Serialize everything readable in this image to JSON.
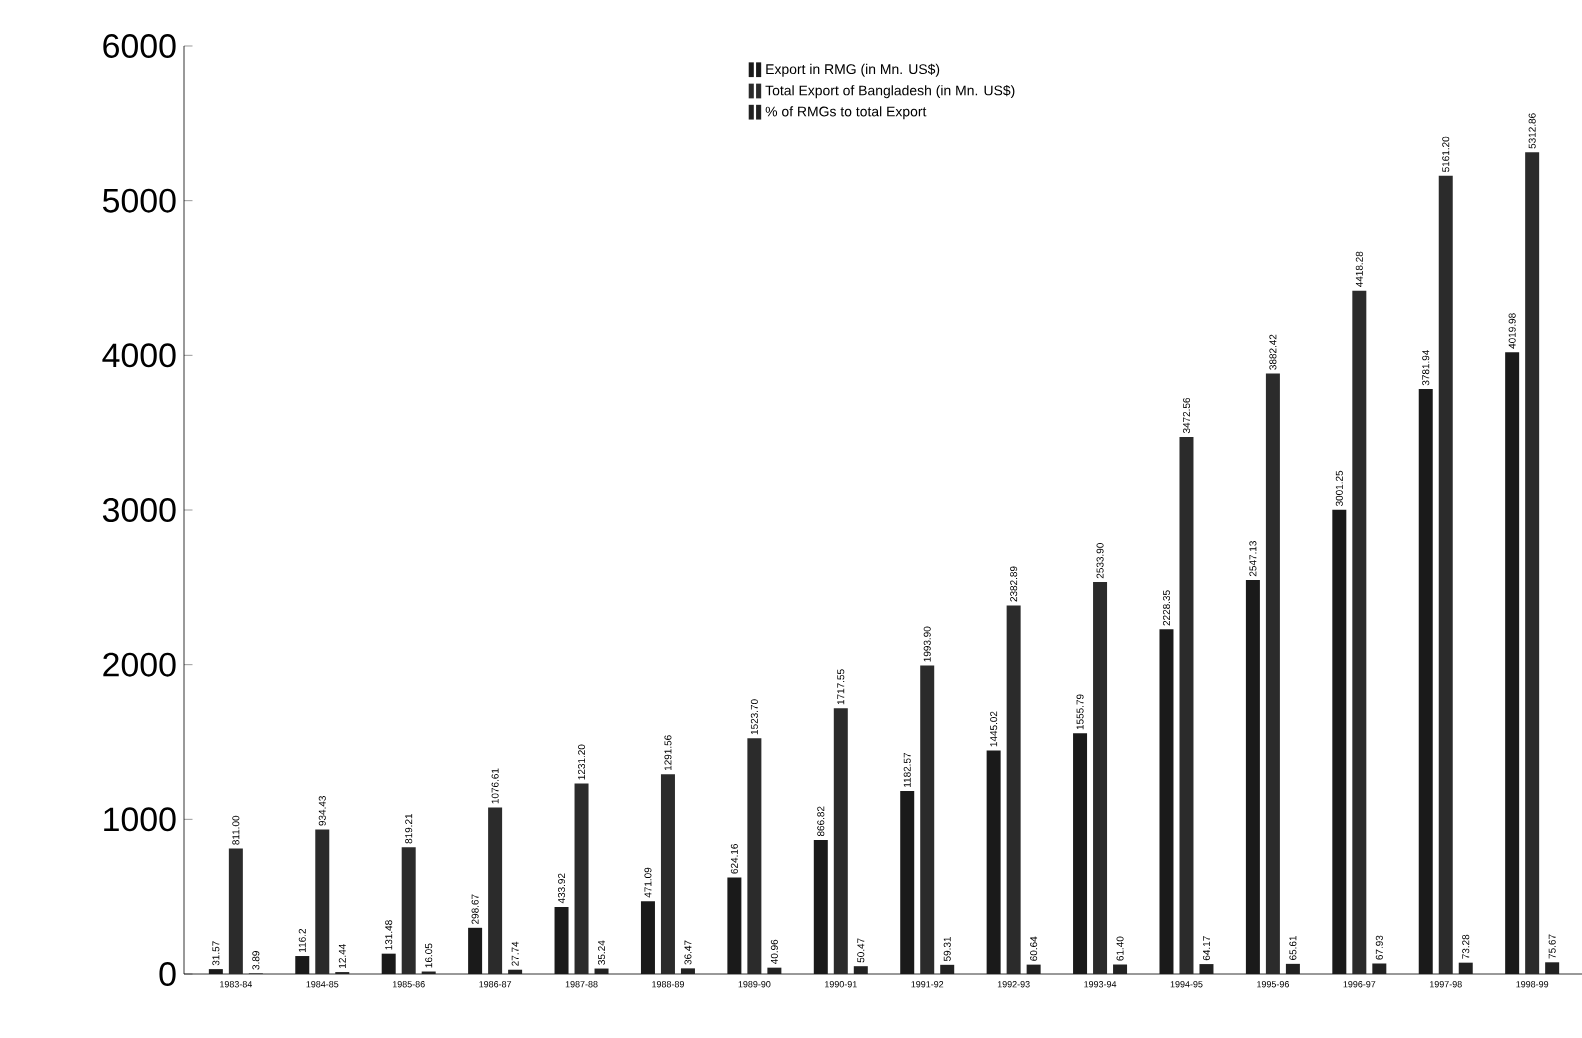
{
  "chart_data": {
    "type": "bar",
    "categories": [
      "1983-84",
      "1984-85",
      "1985-86",
      "1986-87",
      "1987-88",
      "1988-89",
      "1989-90",
      "1990-91",
      "1991-92",
      "1992-93",
      "1993-94",
      "1994-95",
      "1995-96",
      "1996-97",
      "1997-98",
      "1998-99"
    ],
    "series": [
      {
        "name": "Export in RMG (in Mn. US$)",
        "color": "#1a1a1a",
        "values": [
          31.57,
          116.2,
          131.48,
          298.67,
          433.92,
          471.09,
          624.16,
          866.82,
          1182.57,
          1445.02,
          1555.79,
          2228.35,
          2547.13,
          3001.25,
          3781.94,
          4019.98
        ],
        "value_labels": [
          "31.57",
          "116.2",
          "131.48",
          "298.67",
          "433.92",
          "471.09",
          "624.16",
          "866.82",
          "1182.57",
          "1445.02",
          "1555.79",
          "2228.35",
          "2547.13",
          "3001.25",
          "3781.94",
          "4019.98"
        ]
      },
      {
        "name": "Total Export of Bangladesh (in Mn. US$)",
        "color": "#2b2b2b",
        "values": [
          811.0,
          934.43,
          819.21,
          1076.61,
          1231.2,
          1291.56,
          1523.7,
          1717.55,
          1993.9,
          2382.89,
          2533.9,
          3472.56,
          3882.42,
          4418.28,
          5161.2,
          5312.86
        ],
        "value_labels": [
          "811.00",
          "934.43",
          "819.21",
          "1076.61",
          "1231.20",
          "1291.56",
          "1523.70",
          "1717.55",
          "1993.90",
          "2382.89",
          "2533.90",
          "3472.56",
          "3882.42",
          "4418.28",
          "5161.20",
          "5312.86"
        ]
      },
      {
        "name": "% of RMGs to total Export",
        "color": "#222222",
        "values": [
          3.89,
          12.44,
          16.05,
          27.74,
          35.24,
          36.47,
          40.96,
          50.47,
          59.31,
          60.64,
          61.4,
          64.17,
          65.61,
          67.93,
          73.28,
          75.67
        ],
        "value_labels": [
          "3.89",
          "12.44",
          "16.05",
          "27.74",
          "35.24",
          "36.47",
          "40.96",
          "50.47",
          "59.31",
          "60.64",
          "61.40",
          "64.17",
          "65.61",
          "67.93",
          "73.28",
          "75.67"
        ]
      }
    ],
    "ylim": [
      0,
      6000
    ],
    "yticks": [
      0,
      1000,
      2000,
      3000,
      4000,
      5000,
      6000
    ],
    "grid": false,
    "legend": "top"
  }
}
